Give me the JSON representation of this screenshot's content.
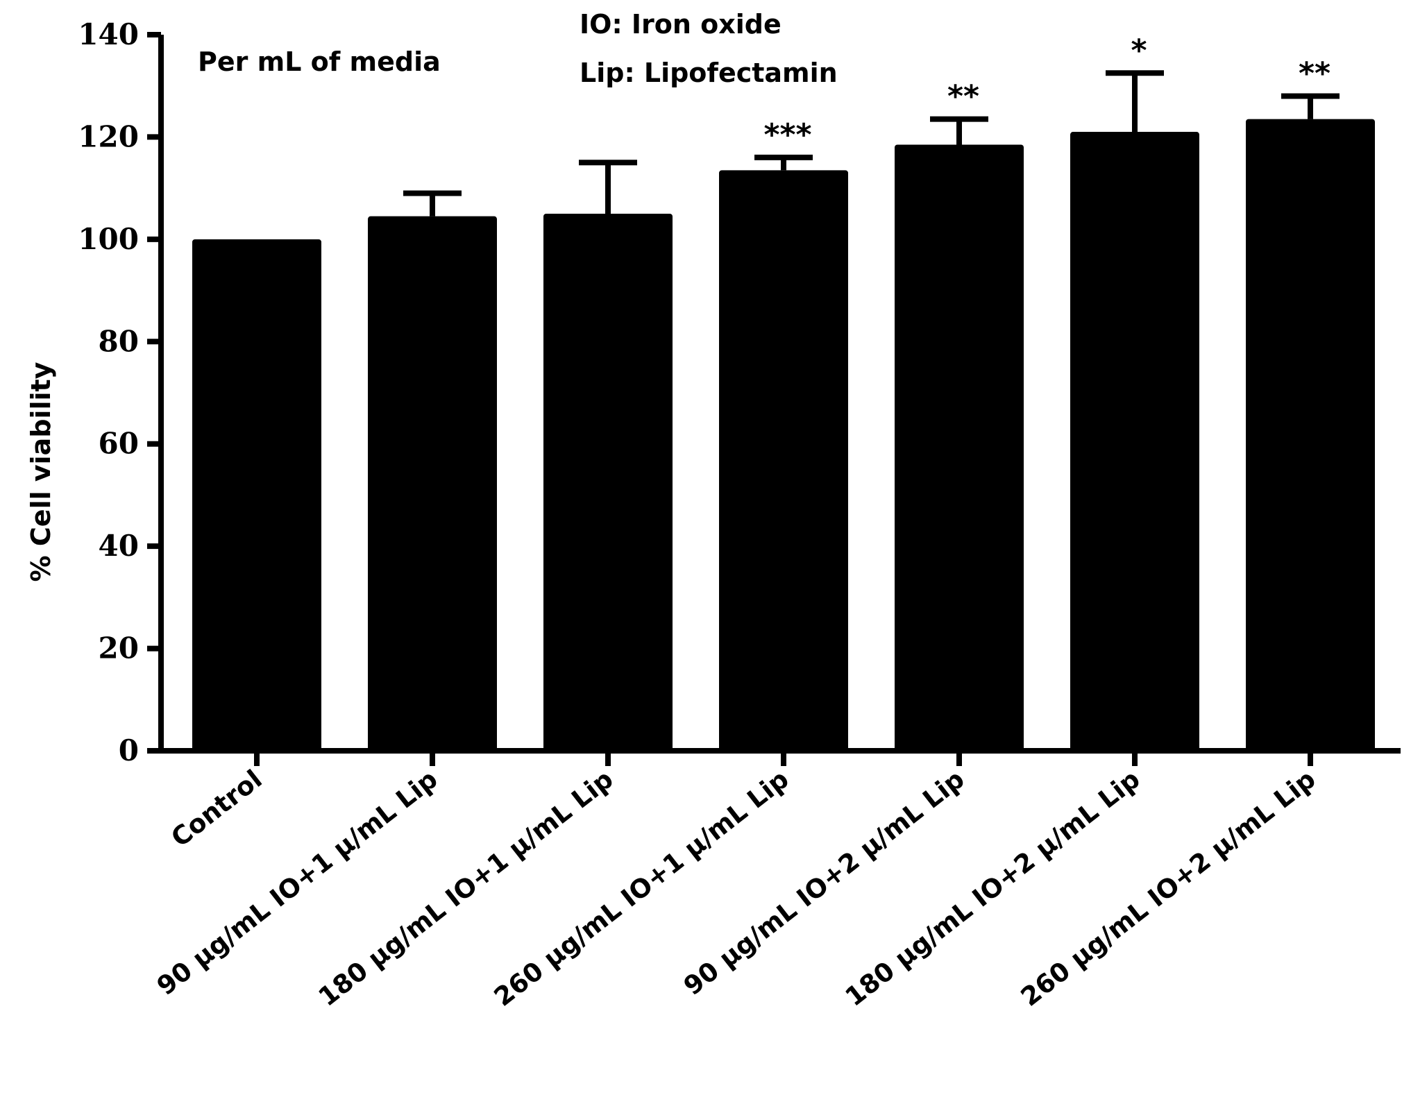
{
  "chart_data": {
    "type": "bar",
    "title": "",
    "xlabel": "",
    "ylabel": "% Cell viability",
    "ylim": [
      0,
      140
    ],
    "yticks": [
      0,
      20,
      40,
      60,
      80,
      100,
      120,
      140
    ],
    "grid": false,
    "bar_color": "#000000",
    "categories": [
      "Control",
      "90 µg/mL IO+1 µ/mL Lip",
      "180 µg/mL IO+1 µ/mL Lip",
      "260 µg/mL IO+1 µ/mL Lip",
      "90 µg/mL IO+2 µ/mL Lip",
      "180 µg/mL IO+2 µ/mL Lip",
      "260 µg/mL IO+2 µ/mL Lip"
    ],
    "values": [
      100,
      104.5,
      105,
      113.5,
      118.5,
      121,
      123.5
    ],
    "error_upper": [
      0,
      4.5,
      10,
      2.5,
      5,
      11.5,
      4.5
    ],
    "significance": [
      "",
      "",
      "",
      "***",
      "**",
      "*",
      "**"
    ],
    "annotations": {
      "per_ml": "Per mL of media",
      "legend_io": "IO: Iron oxide",
      "legend_lip": "Lip: Lipofectamin"
    }
  }
}
